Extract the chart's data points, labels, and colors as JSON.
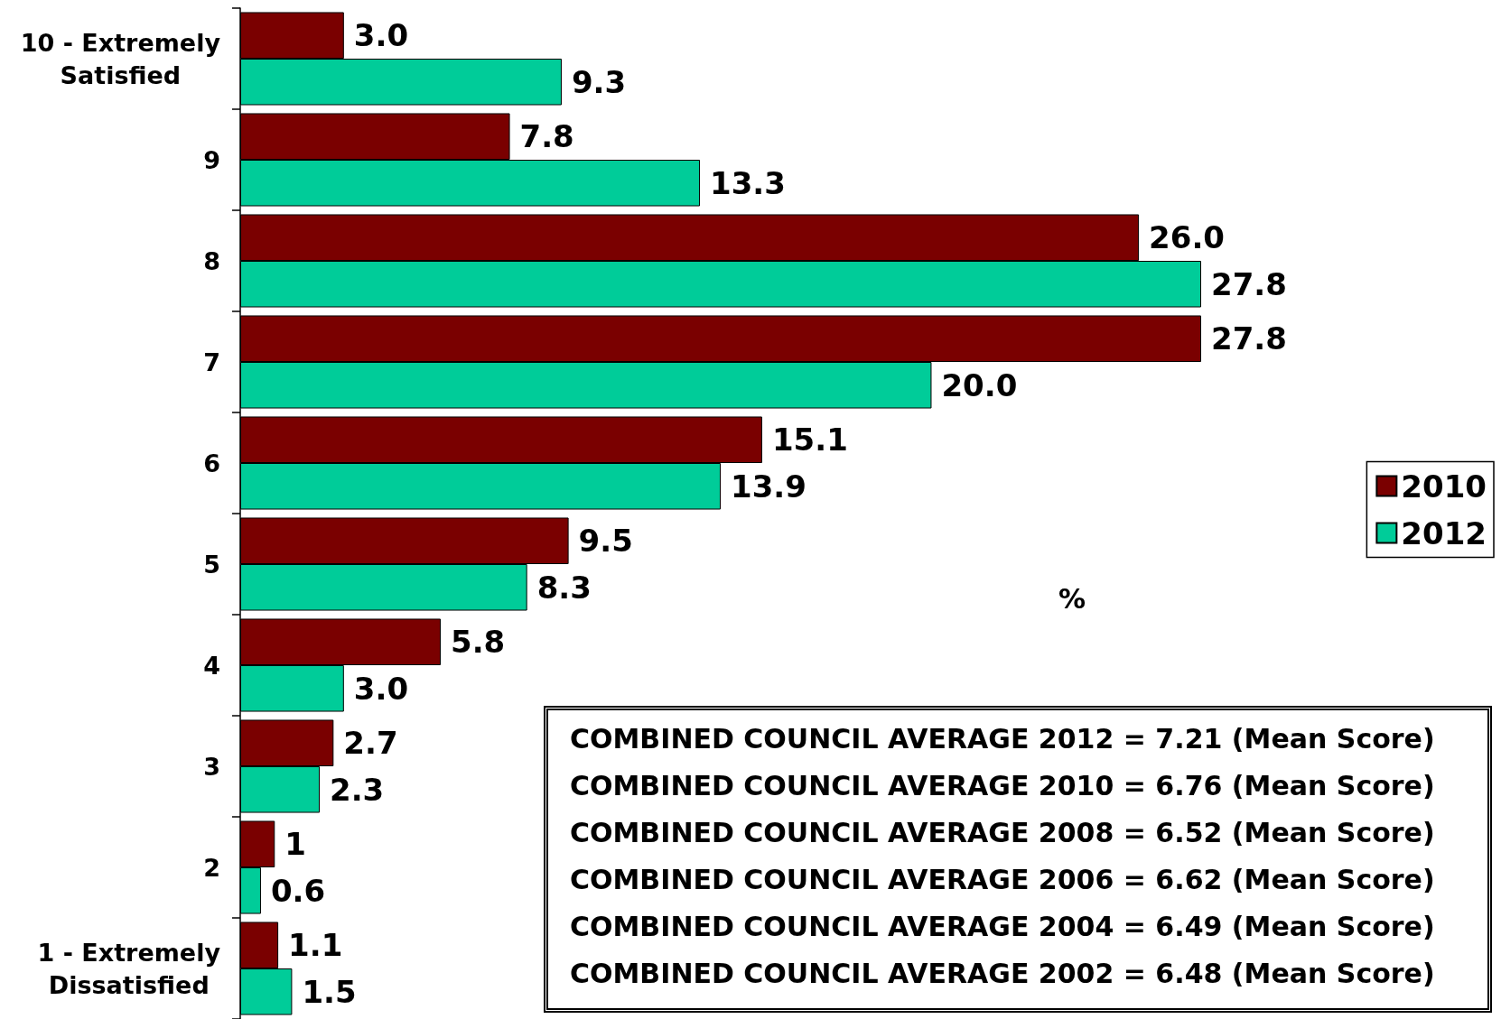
{
  "chart_data": {
    "type": "bar",
    "orientation": "horizontal",
    "categories": [
      "10 - Extremely Satisfied",
      "9",
      "8",
      "7",
      "6",
      "5",
      "4",
      "3",
      "2",
      "1 - Extremely Dissatisfied"
    ],
    "series": [
      {
        "name": "2010",
        "color": "#7a0000",
        "values": [
          3.0,
          7.8,
          26.0,
          27.8,
          15.1,
          9.5,
          5.8,
          2.7,
          1,
          1.1
        ],
        "value_labels": [
          "3.0",
          "7.8",
          "26.0",
          "27.8",
          "15.1",
          "9.5",
          "5.8",
          "2.7",
          "1",
          "1.1"
        ]
      },
      {
        "name": "2012",
        "color": "#00cc99",
        "values": [
          9.3,
          13.3,
          27.8,
          20.0,
          13.9,
          8.3,
          3.0,
          2.3,
          0.6,
          1.5
        ],
        "value_labels": [
          "9.3",
          "13.3",
          "27.8",
          "20.0",
          "13.9",
          "8.3",
          "3.0",
          "2.3",
          "0.6",
          "1.5"
        ]
      }
    ],
    "xlabel": "%",
    "legend": "right",
    "tick_labels": "y",
    "annotations": [
      "COMBINED COUNCIL AVERAGE 2012 = 7.21 (Mean Score)",
      "COMBINED COUNCIL AVERAGE 2010 = 6.76 (Mean Score)",
      "COMBINED COUNCIL AVERAGE 2008 = 6.52 (Mean Score)",
      "COMBINED COUNCIL AVERAGE 2006 = 6.62 (Mean Score)",
      "COMBINED COUNCIL AVERAGE 2004 = 6.49 (Mean Score)",
      "COMBINED COUNCIL AVERAGE 2002 = 6.48 (Mean Score)"
    ]
  }
}
